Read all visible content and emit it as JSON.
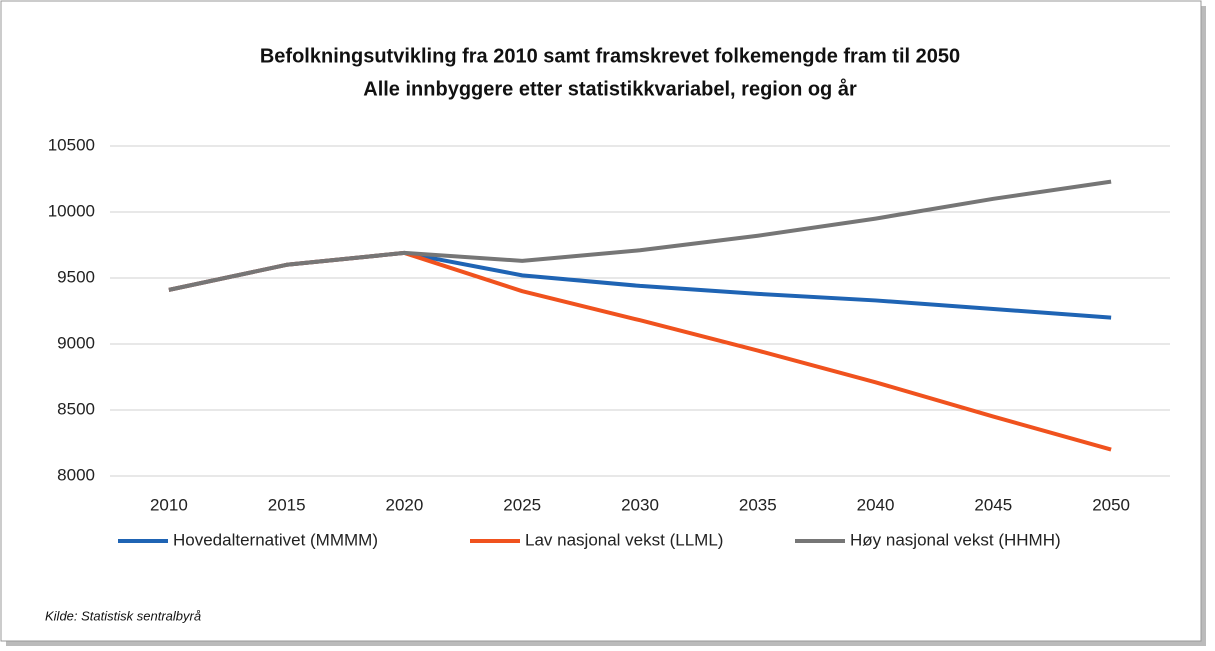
{
  "chart_data": {
    "type": "line",
    "title": "Befolkningsutvikling fra 2010 samt framskrevet folkemengde fram til 2050",
    "subtitle": "Alle innbyggere etter statistikkvariabel, region og år",
    "source": "Kilde:  Statistisk sentralbyrå",
    "categories": [
      "2010",
      "2015",
      "2020",
      "2025",
      "2030",
      "2035",
      "2040",
      "2045",
      "2050"
    ],
    "series": [
      {
        "name": "Hovedalternativet (MMMM)",
        "color": "#1f64b4",
        "values": [
          9410,
          9600,
          9690,
          9520,
          9440,
          9380,
          9330,
          9265,
          9200
        ]
      },
      {
        "name": "Lav nasjonal vekst (LLML)",
        "color": "#f0521e",
        "values": [
          9410,
          9600,
          9690,
          9400,
          9180,
          8950,
          8710,
          8450,
          8200
        ]
      },
      {
        "name": "Høy nasjonal vekst (HHMH)",
        "color": "#767676",
        "values": [
          9410,
          9600,
          9690,
          9630,
          9710,
          9820,
          9950,
          10100,
          10230
        ]
      }
    ],
    "ylim": [
      8000,
      10500
    ],
    "yticks": [
      8000,
      8500,
      9000,
      9500,
      10000,
      10500
    ],
    "grid": true,
    "legend": "bottom"
  }
}
